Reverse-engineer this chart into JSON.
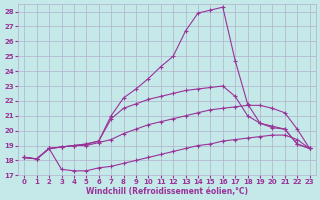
{
  "xlabel": "Windchill (Refroidissement éolien,°C)",
  "xlim": [
    -0.5,
    23.5
  ],
  "ylim": [
    17,
    28.5
  ],
  "yticks": [
    17,
    18,
    19,
    20,
    21,
    22,
    23,
    24,
    25,
    26,
    27,
    28
  ],
  "xticks": [
    0,
    1,
    2,
    3,
    4,
    5,
    6,
    7,
    8,
    9,
    10,
    11,
    12,
    13,
    14,
    15,
    16,
    17,
    18,
    19,
    20,
    21,
    22,
    23
  ],
  "bg_color": "#c5e8e8",
  "grid_color": "#b0b0cc",
  "line_color": "#993399",
  "lines": [
    {
      "x": [
        0,
        1,
        2,
        3,
        4,
        5,
        6,
        7,
        8,
        9,
        10,
        11,
        12,
        13,
        14,
        15,
        16,
        17,
        18,
        19,
        20,
        21,
        22,
        23
      ],
      "y": [
        18.2,
        18.1,
        18.8,
        17.4,
        17.3,
        17.3,
        17.5,
        17.6,
        17.8,
        18.0,
        18.2,
        18.4,
        18.6,
        18.8,
        19.0,
        19.1,
        19.3,
        19.4,
        19.5,
        19.6,
        19.7,
        19.7,
        19.4,
        18.8
      ]
    },
    {
      "x": [
        0,
        1,
        2,
        3,
        4,
        5,
        6,
        7,
        8,
        9,
        10,
        11,
        12,
        13,
        14,
        15,
        16,
        17,
        18,
        19,
        20,
        21,
        22,
        23
      ],
      "y": [
        18.2,
        18.1,
        18.8,
        18.9,
        19.0,
        19.0,
        19.2,
        19.4,
        19.8,
        20.1,
        20.4,
        20.6,
        20.8,
        21.0,
        21.2,
        21.4,
        21.5,
        21.6,
        21.7,
        21.7,
        21.5,
        21.2,
        20.1,
        18.8
      ]
    },
    {
      "x": [
        0,
        1,
        2,
        3,
        4,
        5,
        6,
        7,
        8,
        9,
        10,
        11,
        12,
        13,
        14,
        15,
        16,
        17,
        18,
        19,
        20,
        21,
        22,
        23
      ],
      "y": [
        18.2,
        18.1,
        18.8,
        18.9,
        19.0,
        19.1,
        19.3,
        20.8,
        21.5,
        21.8,
        22.1,
        22.3,
        22.5,
        22.7,
        22.8,
        22.9,
        23.0,
        22.3,
        21.0,
        20.5,
        20.3,
        20.1,
        19.1,
        18.8
      ]
    },
    {
      "x": [
        0,
        1,
        2,
        3,
        4,
        5,
        6,
        7,
        8,
        9,
        10,
        11,
        12,
        13,
        14,
        15,
        16,
        17,
        18,
        19,
        20,
        21,
        22,
        23
      ],
      "y": [
        18.2,
        18.1,
        18.8,
        18.9,
        19.0,
        19.1,
        19.3,
        21.0,
        22.2,
        22.8,
        23.5,
        24.3,
        25.0,
        26.7,
        27.9,
        28.1,
        28.3,
        24.7,
        21.8,
        20.5,
        20.2,
        20.1,
        19.1,
        18.8
      ]
    }
  ]
}
